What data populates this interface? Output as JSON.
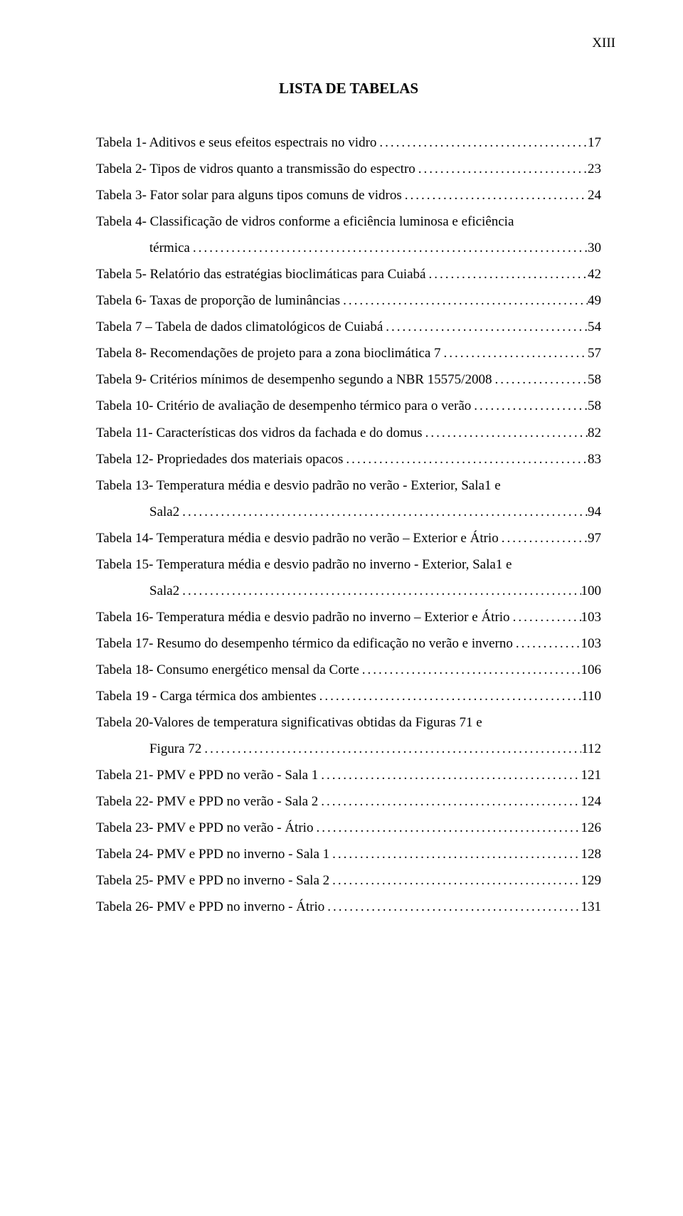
{
  "page_header": "XIII",
  "title": "LISTA DE TABELAS",
  "entries": [
    {
      "label": "Tabela 1- Aditivos e seus efeitos espectrais no vidro",
      "page": "17"
    },
    {
      "label": "Tabela 2- Tipos de vidros quanto a transmissão do espectro",
      "page": "23"
    },
    {
      "label": "Tabela 3- Fator solar para alguns tipos comuns de vidros",
      "page": "24"
    },
    {
      "label_line1": "Tabela 4- Classificação de vidros conforme a eficiência luminosa  e eficiência",
      "label_line2": "térmica",
      "page": "30"
    },
    {
      "label": "Tabela 5- Relatório das estratégias bioclimáticas para Cuiabá",
      "page": "42"
    },
    {
      "label": "Tabela 6- Taxas de proporção de luminâncias",
      "page": "49"
    },
    {
      "label": "Tabela 7 – Tabela de dados climatológicos de Cuiabá",
      "page": "54"
    },
    {
      "label": "Tabela 8- Recomendações de projeto para a zona bioclimática 7",
      "page": "57"
    },
    {
      "label": "Tabela 9- Critérios mínimos de desempenho segundo a NBR 15575/2008",
      "page": "58"
    },
    {
      "label": "Tabela 10- Critério de avaliação de desempenho térmico para o verão",
      "page": "58"
    },
    {
      "label": "Tabela 11- Características dos vidros da fachada e do domus",
      "page": "82"
    },
    {
      "label": "Tabela 12- Propriedades dos materiais opacos",
      "page": "83"
    },
    {
      "label_line1": "Tabela 13- Temperatura média e desvio padrão no verão - Exterior, Sala1 e",
      "label_line2": "Sala2",
      "page": "94"
    },
    {
      "label": "Tabela 14- Temperatura média e desvio padrão no verão – Exterior e Átrio",
      "page": "97"
    },
    {
      "label_line1": "Tabela 15- Temperatura média e desvio padrão no inverno - Exterior, Sala1 e",
      "label_line2": "Sala2",
      "page": "100"
    },
    {
      "label": "Tabela 16- Temperatura média e desvio padrão no inverno – Exterior e Átrio",
      "page": "103"
    },
    {
      "label": "Tabela 17- Resumo do desempenho térmico da edificação no verão e inverno",
      "page": "103"
    },
    {
      "label": "Tabela 18- Consumo energético mensal da Corte",
      "page": "106"
    },
    {
      "label": "Tabela 19 - Carga térmica dos ambientes",
      "page": "110"
    },
    {
      "label_line1": "Tabela 20-Valores de temperatura significativas obtidas da Figuras 71 e",
      "label_line2": "Figura 72",
      "page": "112"
    },
    {
      "label": "Tabela 21- PMV e PPD no verão - Sala 1",
      "page": "121"
    },
    {
      "label": "Tabela 22- PMV e PPD no verão - Sala 2",
      "page": "124"
    },
    {
      "label": "Tabela 23- PMV e PPD no verão - Átrio",
      "page": "126"
    },
    {
      "label": "Tabela 24- PMV e PPD no inverno -  Sala 1",
      "page": "128"
    },
    {
      "label": "Tabela 25- PMV e PPD no inverno -  Sala 2",
      "page": "129"
    },
    {
      "label": "Tabela 26- PMV e PPD no inverno - Átrio",
      "page": "131"
    }
  ]
}
